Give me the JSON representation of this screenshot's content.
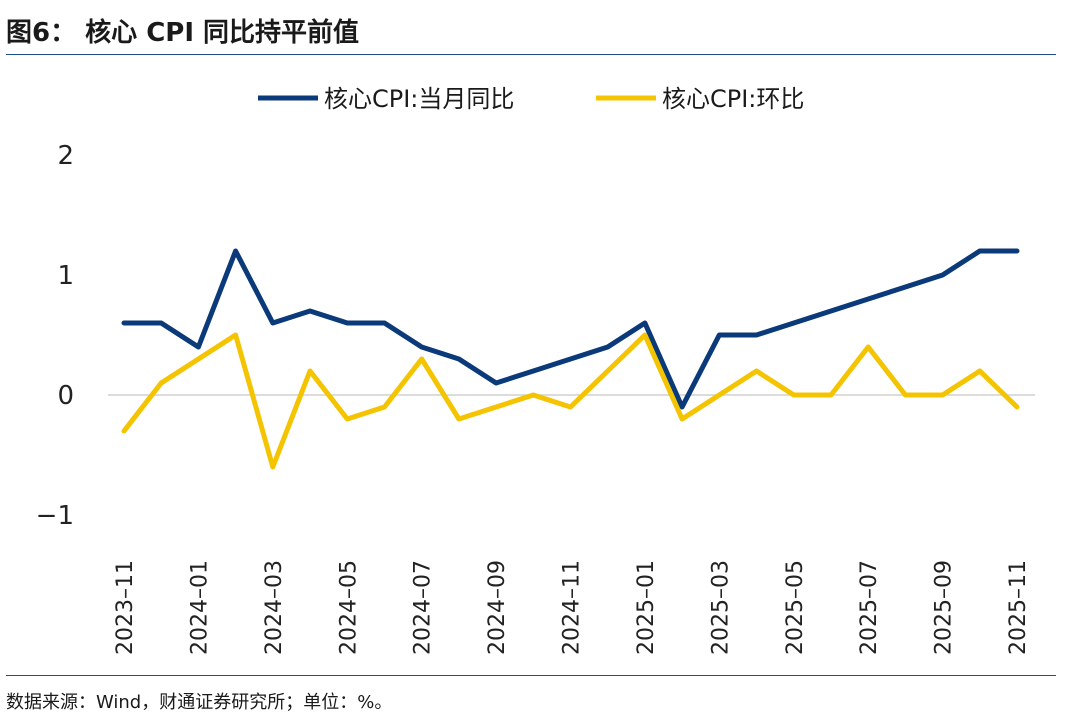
{
  "figure_title": "图6： 核心 CPI 同比持平前值",
  "source_note": "数据来源：Wind，财通证券研究所；单位：%。",
  "chart_data": {
    "type": "line",
    "title": "核心 CPI 同比持平前值",
    "xlabel": "",
    "ylabel": "",
    "ylim": [
      -1,
      2
    ],
    "yticks": [
      2,
      1,
      0,
      -1
    ],
    "ytick_labels": [
      "2",
      "1",
      "0",
      "−1"
    ],
    "legend_position": "top-center",
    "x": [
      "2023-11",
      "2023-12",
      "2024-01",
      "2024-02",
      "2024-03",
      "2024-04",
      "2024-05",
      "2024-06",
      "2024-07",
      "2024-08",
      "2024-09",
      "2024-10",
      "2024-11",
      "2024-12",
      "2025-01",
      "2025-02",
      "2025-03",
      "2025-04",
      "2025-05",
      "2025-06",
      "2025-07",
      "2025-08",
      "2025-09",
      "2025-10",
      "2025-11"
    ],
    "xtick_labels": [
      "2023–11",
      "2024–01",
      "2024–03",
      "2024–05",
      "2024–07",
      "2024–09",
      "2024–11",
      "2025–01",
      "2025–03",
      "2025–05",
      "2025–07",
      "2025–09",
      "2025–11"
    ],
    "xtick_indices": [
      0,
      2,
      4,
      6,
      8,
      10,
      12,
      14,
      16,
      18,
      20,
      22,
      24
    ],
    "series": [
      {
        "name": "核心CPI:当月同比",
        "color": "#0b3a7a",
        "values": [
          0.6,
          0.6,
          0.4,
          1.2,
          0.6,
          0.7,
          0.6,
          0.6,
          0.4,
          0.3,
          0.1,
          0.2,
          0.3,
          0.4,
          0.6,
          -0.1,
          0.5,
          0.5,
          0.6,
          0.7,
          0.8,
          0.9,
          1.0,
          1.2,
          1.2
        ]
      },
      {
        "name": "核心CPI:环比",
        "color": "#f5c400",
        "values": [
          -0.3,
          0.1,
          0.3,
          0.5,
          -0.6,
          0.2,
          -0.2,
          -0.1,
          0.3,
          -0.2,
          -0.1,
          0.0,
          -0.1,
          0.2,
          0.5,
          -0.2,
          0.0,
          0.2,
          0.0,
          0.0,
          0.4,
          0.0,
          0.0,
          0.2,
          -0.1
        ]
      }
    ]
  }
}
